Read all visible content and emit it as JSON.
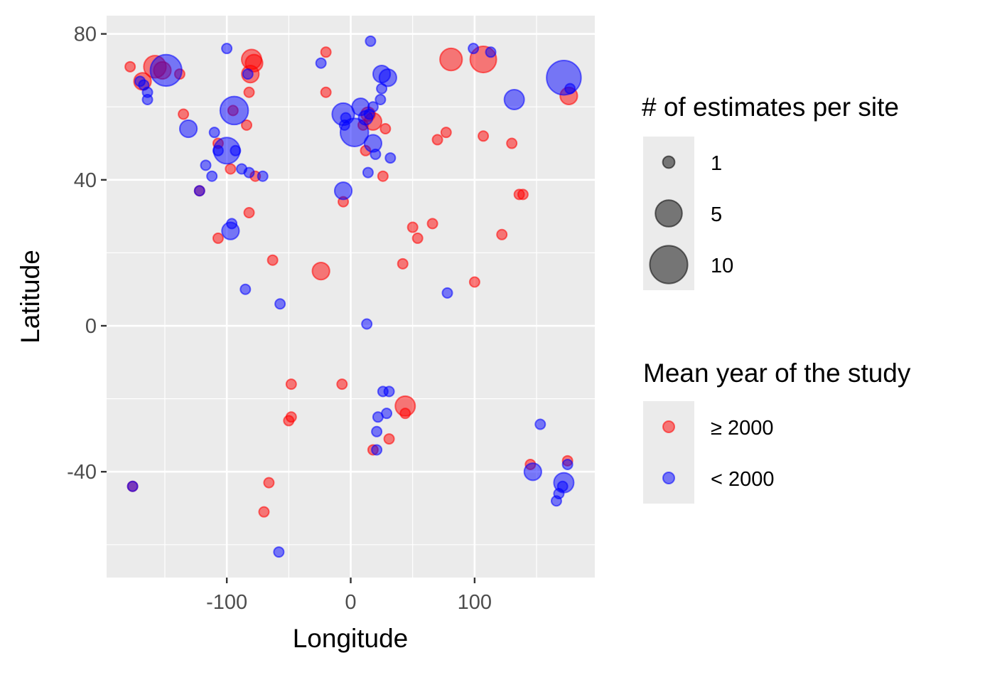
{
  "chart_data": {
    "type": "scatter",
    "xlabel": "Longitude",
    "ylabel": "Latitude",
    "xlim": [
      -197,
      197
    ],
    "ylim": [
      -69,
      85
    ],
    "x_ticks": [
      -100,
      0,
      100
    ],
    "x_tick_labels": [
      "-100",
      "0",
      "100"
    ],
    "y_ticks": [
      -40,
      0,
      40,
      80
    ],
    "y_tick_labels": [
      "-40",
      "0",
      "40",
      "80"
    ],
    "x_minor": [
      -150,
      -50,
      50,
      150
    ],
    "y_minor": [
      -60,
      -20,
      20,
      60
    ],
    "grid": true,
    "size_legend": {
      "title": "# of estimates per site",
      "entries": [
        {
          "label": "1",
          "value": 1
        },
        {
          "label": "5",
          "value": 5
        },
        {
          "label": "10",
          "value": 10
        }
      ]
    },
    "color_legend": {
      "title": "Mean year of the study",
      "entries": [
        {
          "label": "≥ 2000",
          "color": "#ff0000"
        },
        {
          "label": "< 2000",
          "color": "#0000ff"
        }
      ]
    },
    "series": [
      {
        "name": "≥ 2000",
        "color": "#ff0000",
        "points": [
          {
            "x": -178,
            "y": 71,
            "n": 1
          },
          {
            "x": -168,
            "y": 67,
            "n": 3
          },
          {
            "x": -158,
            "y": 71,
            "n": 5
          },
          {
            "x": -152,
            "y": 70,
            "n": 3
          },
          {
            "x": -138,
            "y": 69,
            "n": 1
          },
          {
            "x": -135,
            "y": 58,
            "n": 1
          },
          {
            "x": -80,
            "y": 73,
            "n": 4
          },
          {
            "x": -78,
            "y": 72,
            "n": 3
          },
          {
            "x": -81,
            "y": 69,
            "n": 3
          },
          {
            "x": -82,
            "y": 64,
            "n": 1
          },
          {
            "x": -84,
            "y": 55,
            "n": 1
          },
          {
            "x": -95,
            "y": 59,
            "n": 1
          },
          {
            "x": -107,
            "y": 50,
            "n": 1
          },
          {
            "x": -97,
            "y": 43,
            "n": 1
          },
          {
            "x": -77,
            "y": 41,
            "n": 1
          },
          {
            "x": -122,
            "y": 37,
            "n": 1
          },
          {
            "x": -82,
            "y": 31,
            "n": 1
          },
          {
            "x": -107,
            "y": 24,
            "n": 1
          },
          {
            "x": -63,
            "y": 18,
            "n": 1
          },
          {
            "x": -20,
            "y": 75,
            "n": 1
          },
          {
            "x": -20,
            "y": 64,
            "n": 1
          },
          {
            "x": -6,
            "y": 34,
            "n": 1
          },
          {
            "x": -24,
            "y": 15,
            "n": 3
          },
          {
            "x": 10,
            "y": 55,
            "n": 1
          },
          {
            "x": 14,
            "y": 58,
            "n": 2
          },
          {
            "x": 18,
            "y": 56,
            "n": 3
          },
          {
            "x": 12,
            "y": 48,
            "n": 1
          },
          {
            "x": 28,
            "y": 54,
            "n": 1
          },
          {
            "x": 26,
            "y": 41,
            "n": 1
          },
          {
            "x": 50,
            "y": 27,
            "n": 1
          },
          {
            "x": 54,
            "y": 24,
            "n": 1
          },
          {
            "x": 66,
            "y": 28,
            "n": 1
          },
          {
            "x": 42,
            "y": 17,
            "n": 1
          },
          {
            "x": 70,
            "y": 51,
            "n": 1
          },
          {
            "x": 77,
            "y": 53,
            "n": 1
          },
          {
            "x": 81,
            "y": 73,
            "n": 5
          },
          {
            "x": 107,
            "y": 73,
            "n": 7
          },
          {
            "x": 107,
            "y": 52,
            "n": 1
          },
          {
            "x": 130,
            "y": 50,
            "n": 1
          },
          {
            "x": 122,
            "y": 25,
            "n": 1
          },
          {
            "x": 136,
            "y": 36,
            "n": 1
          },
          {
            "x": 139,
            "y": 36,
            "n": 1
          },
          {
            "x": 100,
            "y": 12,
            "n": 1
          },
          {
            "x": 176,
            "y": 63,
            "n": 3
          },
          {
            "x": -48,
            "y": -16,
            "n": 1
          },
          {
            "x": -7,
            "y": -16,
            "n": 1
          },
          {
            "x": -48,
            "y": -25,
            "n": 1
          },
          {
            "x": -50,
            "y": -26,
            "n": 1
          },
          {
            "x": 44,
            "y": -22,
            "n": 4
          },
          {
            "x": 44,
            "y": -24,
            "n": 1
          },
          {
            "x": 18,
            "y": -34,
            "n": 1
          },
          {
            "x": 31,
            "y": -31,
            "n": 1
          },
          {
            "x": -66,
            "y": -43,
            "n": 1
          },
          {
            "x": -70,
            "y": -51,
            "n": 1
          },
          {
            "x": -176,
            "y": -44,
            "n": 1
          },
          {
            "x": 145,
            "y": -38,
            "n": 1
          },
          {
            "x": 175,
            "y": -37,
            "n": 1
          }
        ]
      },
      {
        "name": "< 2000",
        "color": "#0000ff",
        "points": [
          {
            "x": -149,
            "y": 70,
            "n": 10
          },
          {
            "x": -170,
            "y": 67,
            "n": 1
          },
          {
            "x": -167,
            "y": 66,
            "n": 1
          },
          {
            "x": -164,
            "y": 64,
            "n": 1
          },
          {
            "x": -164,
            "y": 62,
            "n": 1
          },
          {
            "x": -131,
            "y": 54,
            "n": 3
          },
          {
            "x": -100,
            "y": 76,
            "n": 1
          },
          {
            "x": -94,
            "y": 59,
            "n": 8
          },
          {
            "x": -83,
            "y": 69,
            "n": 1
          },
          {
            "x": -110,
            "y": 53,
            "n": 1
          },
          {
            "x": -100,
            "y": 48,
            "n": 7
          },
          {
            "x": -107,
            "y": 48,
            "n": 1
          },
          {
            "x": -93,
            "y": 48,
            "n": 1
          },
          {
            "x": -117,
            "y": 44,
            "n": 1
          },
          {
            "x": -112,
            "y": 41,
            "n": 1
          },
          {
            "x": -88,
            "y": 43,
            "n": 1
          },
          {
            "x": -82,
            "y": 42,
            "n": 1
          },
          {
            "x": -71,
            "y": 41,
            "n": 1
          },
          {
            "x": -122,
            "y": 37,
            "n": 1
          },
          {
            "x": -96,
            "y": 28,
            "n": 1
          },
          {
            "x": -97,
            "y": 26,
            "n": 3
          },
          {
            "x": -85,
            "y": 10,
            "n": 1
          },
          {
            "x": -57,
            "y": 6,
            "n": 1
          },
          {
            "x": -24,
            "y": 72,
            "n": 1
          },
          {
            "x": 16,
            "y": 78,
            "n": 1
          },
          {
            "x": -6,
            "y": 58,
            "n": 5
          },
          {
            "x": 8,
            "y": 60,
            "n": 3
          },
          {
            "x": 3,
            "y": 53,
            "n": 8
          },
          {
            "x": -4,
            "y": 57,
            "n": 1
          },
          {
            "x": -5,
            "y": 55,
            "n": 1
          },
          {
            "x": 12,
            "y": 57,
            "n": 2
          },
          {
            "x": 18,
            "y": 50,
            "n": 3
          },
          {
            "x": 18,
            "y": 60,
            "n": 1
          },
          {
            "x": 15,
            "y": 58,
            "n": 1
          },
          {
            "x": 25,
            "y": 69,
            "n": 3
          },
          {
            "x": 30,
            "y": 68,
            "n": 3
          },
          {
            "x": 25,
            "y": 65,
            "n": 1
          },
          {
            "x": 24,
            "y": 62,
            "n": 1
          },
          {
            "x": 20,
            "y": 47,
            "n": 1
          },
          {
            "x": 32,
            "y": 46,
            "n": 1
          },
          {
            "x": 14,
            "y": 42,
            "n": 1
          },
          {
            "x": -6,
            "y": 37,
            "n": 3
          },
          {
            "x": 99,
            "y": 76,
            "n": 1
          },
          {
            "x": 113,
            "y": 75,
            "n": 1
          },
          {
            "x": 132,
            "y": 62,
            "n": 4
          },
          {
            "x": 172,
            "y": 68,
            "n": 12
          },
          {
            "x": 177,
            "y": 65,
            "n": 1
          },
          {
            "x": 78,
            "y": 9,
            "n": 1
          },
          {
            "x": 13,
            "y": 0.5,
            "n": 1
          },
          {
            "x": 26,
            "y": -18,
            "n": 1
          },
          {
            "x": 31,
            "y": -18,
            "n": 1
          },
          {
            "x": 22,
            "y": -25,
            "n": 1
          },
          {
            "x": 29,
            "y": -24,
            "n": 1
          },
          {
            "x": 21,
            "y": -29,
            "n": 1
          },
          {
            "x": 21,
            "y": -34,
            "n": 1
          },
          {
            "x": 153,
            "y": -27,
            "n": 1
          },
          {
            "x": 147,
            "y": -40,
            "n": 3
          },
          {
            "x": 172,
            "y": -43,
            "n": 4
          },
          {
            "x": 171,
            "y": -44,
            "n": 1
          },
          {
            "x": 175,
            "y": -38,
            "n": 1
          },
          {
            "x": 168,
            "y": -46,
            "n": 1
          },
          {
            "x": 166,
            "y": -48,
            "n": 1
          },
          {
            "x": -176,
            "y": -44,
            "n": 1
          },
          {
            "x": -58,
            "y": -62,
            "n": 1
          }
        ]
      }
    ]
  }
}
